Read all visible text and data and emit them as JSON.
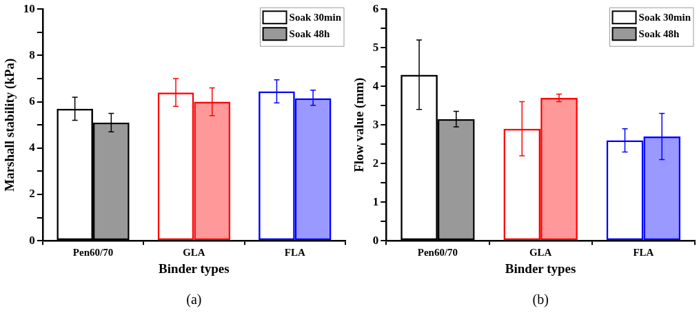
{
  "chart_data": [
    {
      "type": "bar",
      "xlabel": "Binder types",
      "ylabel": "Marshall stability (kPa)",
      "categories": [
        "Pen60/70",
        "GLA",
        "FLA"
      ],
      "series": [
        {
          "name": "Soak 30min",
          "colors": [
            "#000000",
            "#ff0000",
            "#0000ff"
          ],
          "values": [
            5.7,
            6.4,
            6.45
          ],
          "errors": [
            [
              5.2,
              6.2
            ],
            [
              5.8,
              7.0
            ],
            [
              5.95,
              6.95
            ]
          ]
        },
        {
          "name": "Soak 48h",
          "colors": [
            "#000000",
            "#ff0000",
            "#0000ff"
          ],
          "values": [
            5.1,
            6.0,
            6.15
          ],
          "errors": [
            [
              4.7,
              5.5
            ],
            [
              5.4,
              6.6
            ],
            [
              5.85,
              6.5
            ]
          ]
        }
      ],
      "ylim": [
        0,
        10
      ],
      "yticks": [
        0,
        {
          "value": 1,
          "label": null
        },
        2,
        {
          "value": 3,
          "label": null
        },
        4,
        {
          "value": 5,
          "label": null
        },
        6,
        {
          "value": 7,
          "label": null
        },
        8,
        {
          "value": 9,
          "label": null
        },
        10
      ],
      "grid": false,
      "legend": "top right",
      "annotations": [
        "(a)"
      ]
    },
    {
      "type": "bar",
      "xlabel": "Binder types",
      "ylabel": "Flow value (mm)",
      "categories": [
        "Pen60/70",
        "GLA",
        "FLA"
      ],
      "series": [
        {
          "name": "Soak 30min",
          "colors": [
            "#000000",
            "#ff0000",
            "#0000ff"
          ],
          "values": [
            4.3,
            2.9,
            2.6
          ],
          "errors": [
            [
              3.4,
              5.2
            ],
            [
              2.2,
              3.6
            ],
            [
              2.3,
              2.9
            ]
          ]
        },
        {
          "name": "Soak 48h",
          "colors": [
            "#000000",
            "#ff0000",
            "#0000ff"
          ],
          "values": [
            3.15,
            3.7,
            2.7
          ],
          "errors": [
            [
              2.95,
              3.35
            ],
            [
              3.6,
              3.8
            ],
            [
              2.1,
              3.3
            ]
          ]
        }
      ],
      "ylim": [
        0,
        6
      ],
      "yticks": [
        0,
        {
          "value": 0.5,
          "label": null
        },
        1,
        {
          "value": 1.5,
          "label": null
        },
        2,
        {
          "value": 2.5,
          "label": null
        },
        3,
        {
          "value": 3.5,
          "label": null
        },
        4,
        {
          "value": 4.5,
          "label": null
        },
        5,
        {
          "value": 5.5,
          "label": null
        },
        6
      ],
      "grid": false,
      "legend": "top right",
      "annotations": [
        "(b)"
      ]
    }
  ]
}
